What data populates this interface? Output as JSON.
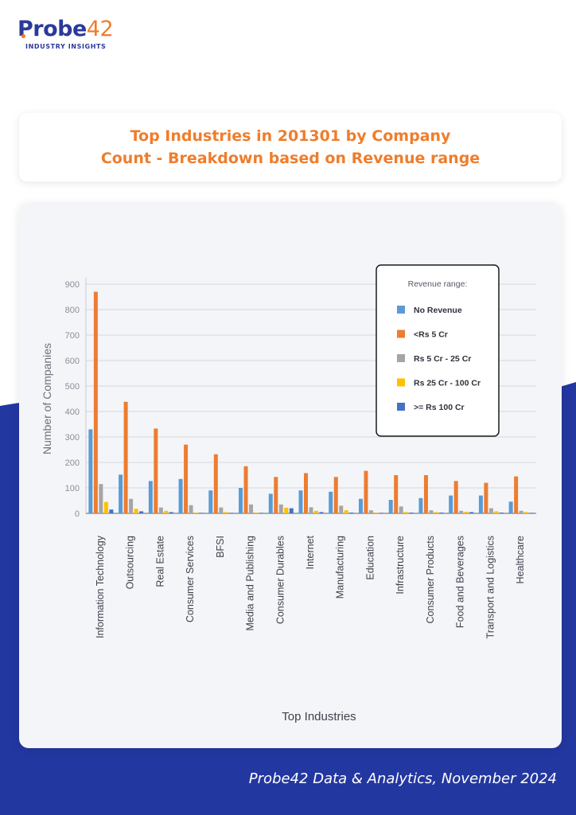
{
  "header": {
    "logo_name": "Probe",
    "logo_number": "42",
    "logo_tagline": "INDUSTRY INSIGHTS"
  },
  "title": {
    "line1": "Top Industries in 201301 by Company",
    "line2": "Count - Breakdown based on Revenue range"
  },
  "footer": {
    "text": "Probe42 Data & Analytics, November 2024"
  },
  "colors": {
    "brand_blue": "#2b3a9a",
    "brand_orange": "#ef7d2b",
    "card_bg": "#f4f5f8"
  },
  "chart_data": {
    "type": "bar",
    "xlabel": "Top Industries",
    "ylabel": "Number of Companies",
    "ylim": [
      0,
      900
    ],
    "yticks": [
      0,
      100,
      200,
      300,
      400,
      500,
      600,
      700,
      800,
      900
    ],
    "grid": true,
    "legend_title": "Revenue range:",
    "legend_position": "top-right",
    "categories": [
      "Information Technology",
      "Outsourcing",
      "Real Estate",
      "Consumer Services",
      "BFSI",
      "Media and Publishing",
      "Consumer Durables",
      "Internet",
      "Manufacturing",
      "Education",
      "Infrastructure",
      "Consumer Products",
      "Food and Beverages",
      "Transport and Logistics",
      "Healthcare"
    ],
    "series": [
      {
        "name": "No Revenue",
        "color": "#5b9bd5",
        "values": [
          330,
          152,
          127,
          135,
          90,
          100,
          77,
          90,
          85,
          57,
          53,
          60,
          70,
          70,
          46
        ]
      },
      {
        "name": "<Rs 5 Cr",
        "color": "#ed7d31",
        "values": [
          870,
          438,
          333,
          270,
          232,
          185,
          143,
          158,
          143,
          167,
          150,
          150,
          127,
          120,
          145
        ]
      },
      {
        "name": "Rs 5 Cr - 25 Cr",
        "color": "#a5a5a5",
        "values": [
          115,
          57,
          23,
          32,
          23,
          35,
          35,
          24,
          30,
          12,
          27,
          12,
          10,
          20,
          10
        ]
      },
      {
        "name": "Rs 25 Cr - 100 Cr",
        "color": "#ffc000",
        "values": [
          45,
          18,
          10,
          3,
          5,
          3,
          22,
          10,
          12,
          3,
          5,
          5,
          6,
          8,
          5
        ]
      },
      {
        "name": ">= Rs 100 Cr",
        "color": "#4472c4",
        "values": [
          15,
          8,
          5,
          2,
          2,
          2,
          20,
          5,
          3,
          2,
          3,
          3,
          5,
          3,
          2
        ]
      }
    ]
  }
}
